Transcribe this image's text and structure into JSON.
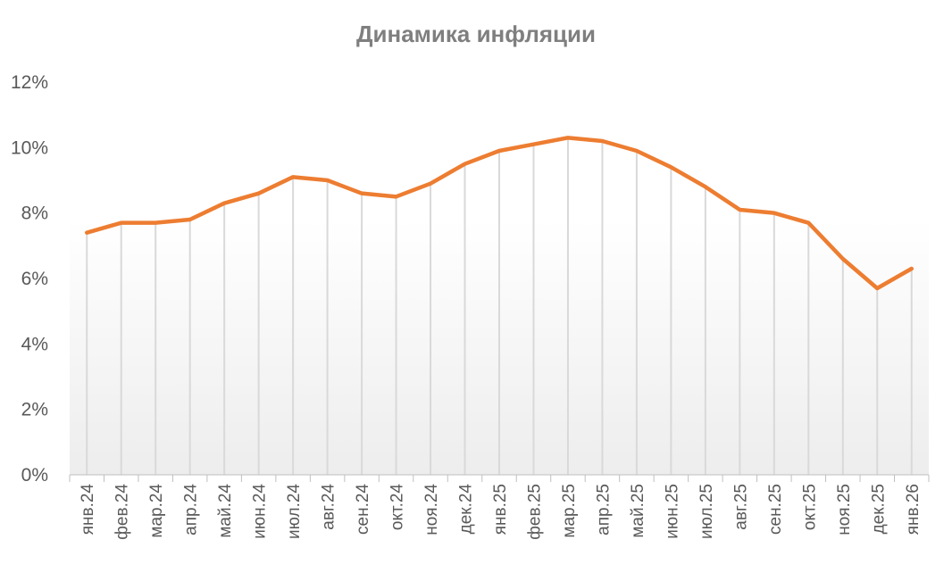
{
  "chart_data": {
    "type": "line",
    "title": "Динамика инфляции",
    "xlabel": "",
    "ylabel": "",
    "categories": [
      "янв.24",
      "фев.24",
      "мар.24",
      "апр.24",
      "май.24",
      "июн.24",
      "июл.24",
      "авг.24",
      "сен.24",
      "окт.24",
      "ноя.24",
      "дек.24",
      "янв.25",
      "фев.25",
      "мар.25",
      "апр.25",
      "май.25",
      "июн.25",
      "июл.25",
      "авг.25",
      "сен.25",
      "окт.25",
      "ноя.25",
      "дек.25",
      "янв.26"
    ],
    "series": [
      {
        "color": "#ed7d31",
        "values": [
          7.4,
          7.7,
          7.7,
          7.8,
          8.3,
          8.6,
          9.1,
          9.0,
          8.6,
          8.5,
          8.9,
          9.5,
          9.9,
          10.1,
          10.3,
          10.2,
          9.9,
          9.4,
          8.8,
          8.1,
          8.0,
          7.7,
          6.6,
          5.7,
          6.3
        ]
      }
    ],
    "ylim": [
      0,
      12
    ],
    "yticks": [
      "0%",
      "2%",
      "4%",
      "6%",
      "8%",
      "10%",
      "12%"
    ],
    "grid": "vertical drop lines",
    "legend": "none"
  }
}
